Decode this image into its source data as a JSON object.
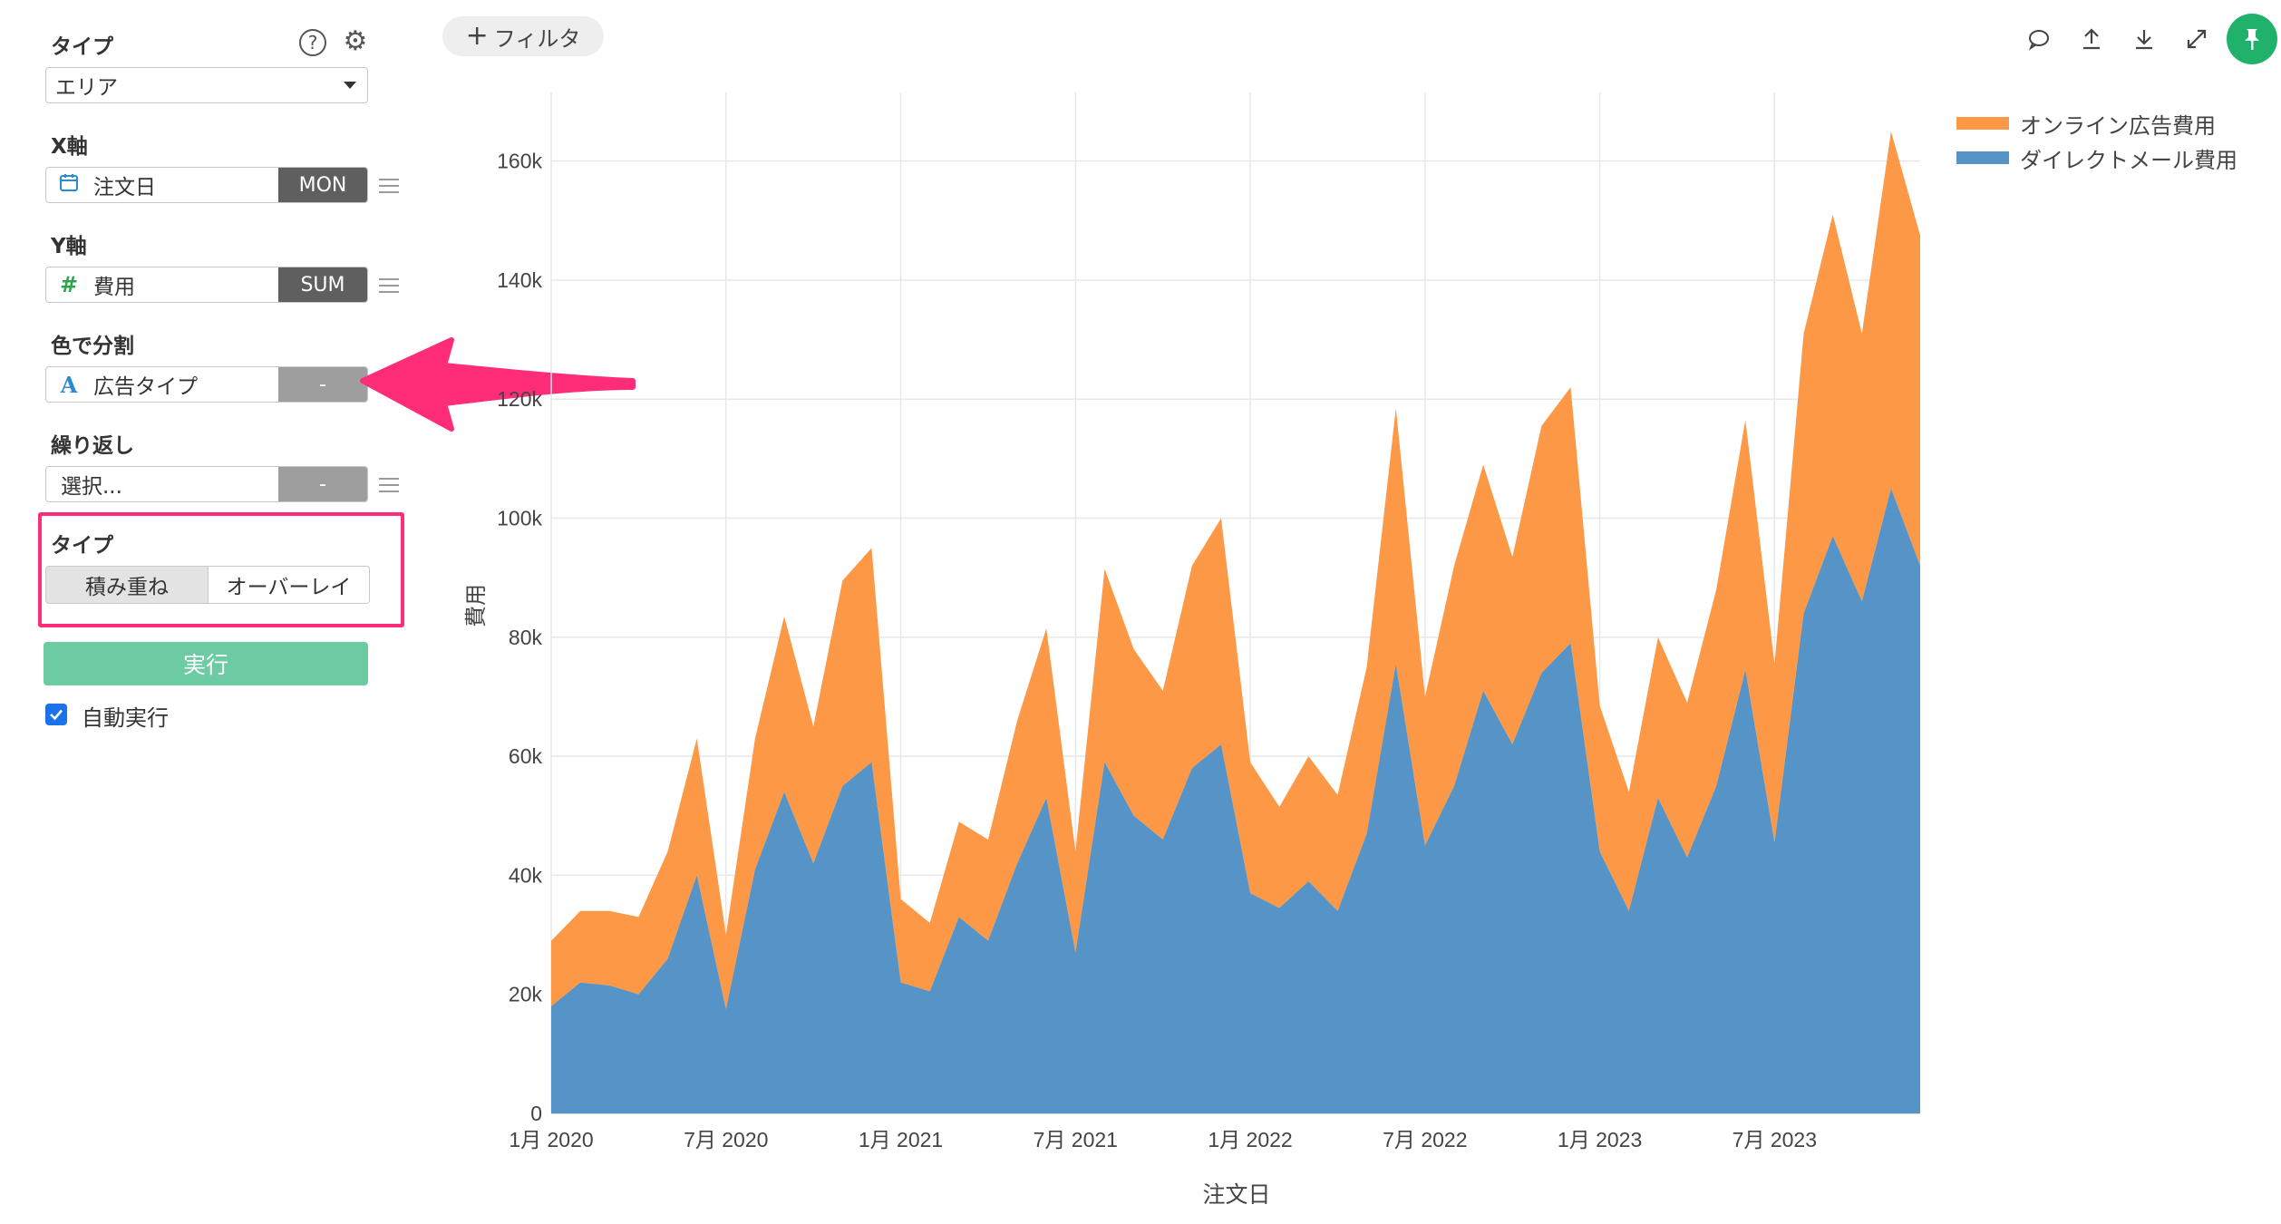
{
  "sidebar": {
    "type_label": "タイプ",
    "type_select": "エリア",
    "x_label": "X軸",
    "x_field": "注文日",
    "x_agg": "MON",
    "y_label": "Y軸",
    "y_field": "費用",
    "y_agg": "SUM",
    "color_label": "色で分割",
    "color_field": "広告タイプ",
    "color_agg": "-",
    "repeat_label": "繰り返し",
    "repeat_field": "選択...",
    "repeat_agg": "-",
    "mode_label": "タイプ",
    "mode_stacked": "積み重ね",
    "mode_overlay": "オーバーレイ",
    "run_button": "実行",
    "auto_run_label": "自動実行",
    "auto_run_checked": true
  },
  "toolbar": {
    "filter_button": "フィルタ"
  },
  "colors": {
    "accent_pink": "#ff2d78",
    "run_green": "#6ccba3",
    "pin_green": "#20b26b",
    "series_orange": "#fd9846",
    "series_blue": "#5693c7"
  },
  "chart_data": {
    "type": "area",
    "stacked": true,
    "xlabel": "注文日",
    "ylabel": "費用",
    "x_ticks": [
      "1月 2020",
      "7月 2020",
      "1月 2021",
      "7月 2021",
      "1月 2022",
      "7月 2022",
      "1月 2023",
      "7月 2023"
    ],
    "y_ticks": [
      "0",
      "20k",
      "40k",
      "60k",
      "80k",
      "100k",
      "120k",
      "140k",
      "160k"
    ],
    "ylim": [
      0,
      170000
    ],
    "legend_position": "top-right",
    "x": [
      "2020-01",
      "2020-02",
      "2020-03",
      "2020-04",
      "2020-05",
      "2020-06",
      "2020-07",
      "2020-08",
      "2020-09",
      "2020-10",
      "2020-11",
      "2020-12",
      "2021-01",
      "2021-02",
      "2021-03",
      "2021-04",
      "2021-05",
      "2021-06",
      "2021-07",
      "2021-08",
      "2021-09",
      "2021-10",
      "2021-11",
      "2021-12",
      "2022-01",
      "2022-02",
      "2022-03",
      "2022-04",
      "2022-05",
      "2022-06",
      "2022-07",
      "2022-08",
      "2022-09",
      "2022-10",
      "2022-11",
      "2022-12",
      "2023-01",
      "2023-02",
      "2023-03",
      "2023-04",
      "2023-05",
      "2023-06",
      "2023-07",
      "2023-08",
      "2023-09",
      "2023-10",
      "2023-11",
      "2023-12"
    ],
    "series": [
      {
        "name": "ダイレクトメール費用",
        "color": "#5693c7",
        "values": [
          18000,
          22000,
          21500,
          20000,
          26000,
          40000,
          17500,
          41000,
          54000,
          42000,
          55000,
          59000,
          22000,
          20500,
          33000,
          29000,
          42000,
          53000,
          27000,
          59000,
          50000,
          46000,
          58000,
          62000,
          37000,
          34500,
          39000,
          34000,
          47000,
          75500,
          45000,
          55000,
          71000,
          62000,
          74000,
          79000,
          44000,
          34000,
          53000,
          43000,
          55000,
          74500,
          45500,
          84000,
          97000,
          86000,
          105000,
          92000
        ]
      },
      {
        "name": "オンライン広告費用",
        "color": "#fd9846",
        "values": [
          11000,
          12000,
          12500,
          13000,
          18000,
          23000,
          12500,
          22000,
          29500,
          23000,
          34500,
          36000,
          14000,
          11500,
          16000,
          17000,
          24000,
          28500,
          17000,
          32500,
          28000,
          25000,
          34000,
          38000,
          22000,
          17000,
          21000,
          19500,
          28000,
          43000,
          25000,
          37000,
          38000,
          31500,
          41500,
          43000,
          24500,
          20000,
          27000,
          26000,
          33000,
          42000,
          30000,
          47000,
          54000,
          45000,
          60000,
          55500
        ]
      }
    ]
  }
}
